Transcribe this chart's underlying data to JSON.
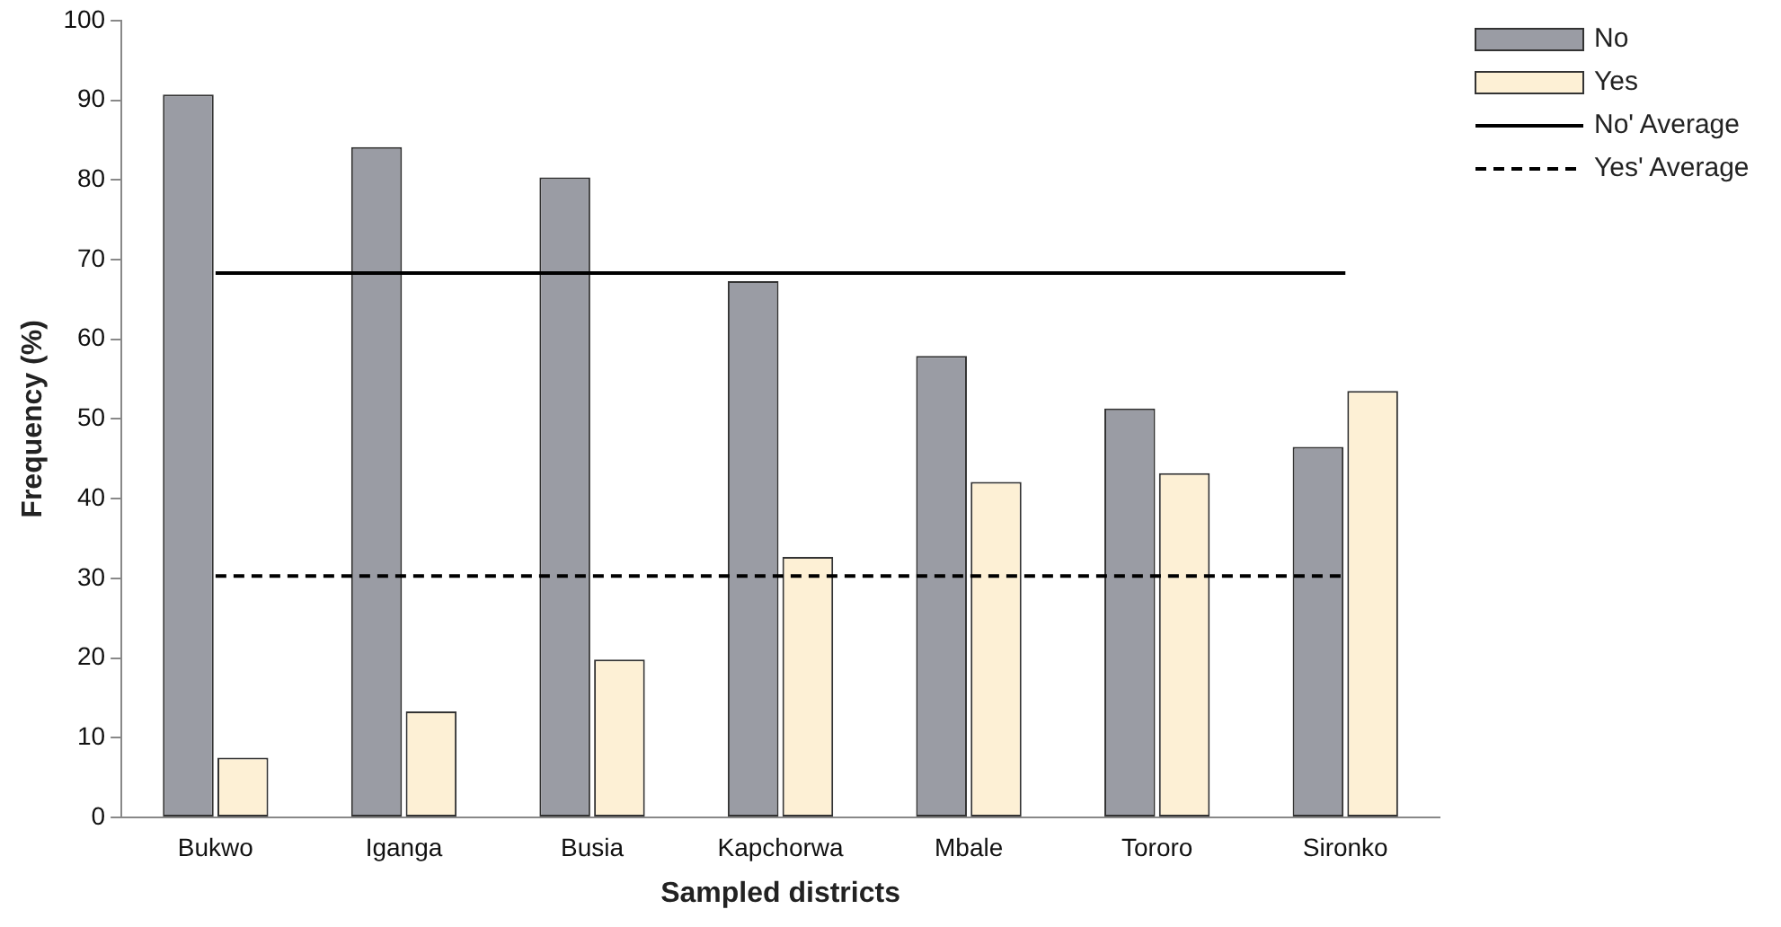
{
  "chart_data": {
    "type": "bar",
    "xlabel": "Sampled districts",
    "ylabel": "Frequency (%)",
    "categories": [
      "Bukwo",
      "Iganga",
      "Busia",
      "Kapchorwa",
      "Mbale",
      "Tororo",
      "Sironko"
    ],
    "series": [
      {
        "name": "No",
        "color": "#9a9ca4",
        "values": [
          90.7,
          84.1,
          80.3,
          67.3,
          57.9,
          51.3,
          46.5
        ]
      },
      {
        "name": "Yes",
        "color": "#fdf0d5",
        "values": [
          7.5,
          13.3,
          19.8,
          32.7,
          42.1,
          43.2,
          53.5
        ]
      },
      {
        "name": "No' Average",
        "type": "line",
        "color": "#000000",
        "line_style": "solid",
        "values": [
          68.3,
          68.3,
          68.3,
          68.3,
          68.3,
          68.3,
          68.3
        ]
      },
      {
        "name": "Yes' Average",
        "type": "line",
        "color": "#000000",
        "line_style": "dashed",
        "values": [
          30.3,
          30.3,
          30.3,
          30.3,
          30.3,
          30.3,
          30.3
        ]
      }
    ],
    "ylim": [
      0,
      100
    ],
    "yticks": [
      0,
      10,
      20,
      30,
      40,
      50,
      60,
      70,
      80,
      90,
      100
    ],
    "grid": false,
    "legend": "top right",
    "marker": "none"
  }
}
